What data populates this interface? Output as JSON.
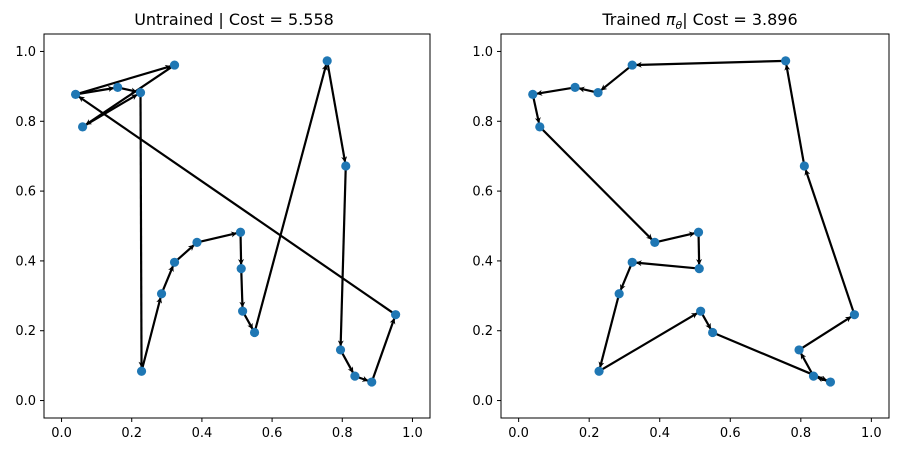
{
  "chart_data": [
    {
      "type": "scatter",
      "title": "Untrained | Cost = 5.558",
      "xlim": [
        -0.05,
        1.05
      ],
      "ylim": [
        -0.05,
        1.05
      ],
      "xticks": [
        "0.0",
        "0.2",
        "0.4",
        "0.6",
        "0.8",
        "1.0"
      ],
      "yticks": [
        "0.0",
        "0.2",
        "0.4",
        "0.6",
        "0.8",
        "1.0"
      ],
      "grid": false,
      "points": [
        {
          "x": 0.04,
          "y": 0.877
        },
        {
          "x": 0.06,
          "y": 0.784
        },
        {
          "x": 0.16,
          "y": 0.897
        },
        {
          "x": 0.225,
          "y": 0.882
        },
        {
          "x": 0.322,
          "y": 0.961
        },
        {
          "x": 0.228,
          "y": 0.084
        },
        {
          "x": 0.285,
          "y": 0.306
        },
        {
          "x": 0.322,
          "y": 0.396
        },
        {
          "x": 0.386,
          "y": 0.453
        },
        {
          "x": 0.51,
          "y": 0.482
        },
        {
          "x": 0.512,
          "y": 0.378
        },
        {
          "x": 0.516,
          "y": 0.256
        },
        {
          "x": 0.55,
          "y": 0.195
        },
        {
          "x": 0.757,
          "y": 0.973
        },
        {
          "x": 0.81,
          "y": 0.672
        },
        {
          "x": 0.795,
          "y": 0.145
        },
        {
          "x": 0.836,
          "y": 0.07
        },
        {
          "x": 0.884,
          "y": 0.053
        },
        {
          "x": 0.952,
          "y": 0.246
        }
      ],
      "tour": [
        0,
        2,
        3,
        5,
        6,
        7,
        8,
        9,
        10,
        11,
        12,
        13,
        14,
        15,
        16,
        17,
        18,
        0
      ],
      "extra_edges": [
        [
          0,
          4
        ],
        [
          4,
          1
        ],
        [
          1,
          3
        ]
      ]
    },
    {
      "type": "scatter",
      "title": "Trained π_θ| Cost = 3.896",
      "title_main": "Trained ",
      "title_symbol": "π",
      "title_subscript": "θ",
      "title_rest": "| Cost = 3.896",
      "xlim": [
        -0.05,
        1.05
      ],
      "ylim": [
        -0.05,
        1.05
      ],
      "xticks": [
        "0.0",
        "0.2",
        "0.4",
        "0.6",
        "0.8",
        "1.0"
      ],
      "yticks": [
        "0.0",
        "0.2",
        "0.4",
        "0.6",
        "0.8",
        "1.0"
      ],
      "grid": false,
      "points": [
        {
          "x": 0.04,
          "y": 0.877
        },
        {
          "x": 0.06,
          "y": 0.784
        },
        {
          "x": 0.16,
          "y": 0.897
        },
        {
          "x": 0.225,
          "y": 0.882
        },
        {
          "x": 0.322,
          "y": 0.961
        },
        {
          "x": 0.228,
          "y": 0.084
        },
        {
          "x": 0.285,
          "y": 0.306
        },
        {
          "x": 0.322,
          "y": 0.396
        },
        {
          "x": 0.386,
          "y": 0.453
        },
        {
          "x": 0.51,
          "y": 0.482
        },
        {
          "x": 0.512,
          "y": 0.378
        },
        {
          "x": 0.516,
          "y": 0.256
        },
        {
          "x": 0.55,
          "y": 0.195
        },
        {
          "x": 0.757,
          "y": 0.973
        },
        {
          "x": 0.81,
          "y": 0.672
        },
        {
          "x": 0.795,
          "y": 0.145
        },
        {
          "x": 0.836,
          "y": 0.07
        },
        {
          "x": 0.884,
          "y": 0.053
        },
        {
          "x": 0.952,
          "y": 0.246
        }
      ],
      "tour": [
        13,
        4,
        3,
        2,
        0,
        1,
        8,
        9,
        10,
        7,
        6,
        5,
        11,
        12,
        17,
        16,
        15,
        18,
        14,
        13
      ],
      "extra_edges": []
    }
  ]
}
